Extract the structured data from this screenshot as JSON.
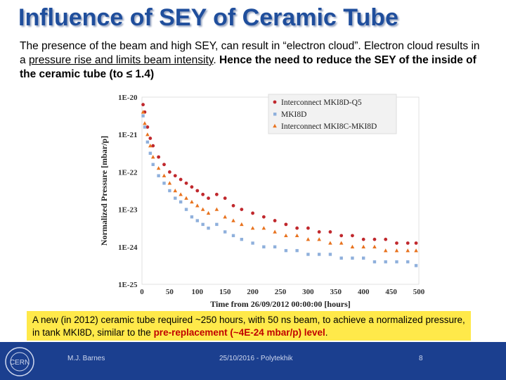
{
  "slide": {
    "title": "Influence of SEY of Ceramic Tube",
    "intro": {
      "p1": "The presence of the beam and high SEY, can result in “electron cloud”. Electron cloud results in a ",
      "p2": "pressure rise and limits beam intensity",
      "p3": ". ",
      "p4": "Hence the need to reduce the  SEY of the inside of the ceramic tube (to ≤ 1.4)"
    },
    "note": {
      "p1": "A new (in 2012) ceramic tube required ~250 hours, with 50 ns beam, to achieve a normalized pressure, in tank MKI8D, similar to the ",
      "p2": "pre-replacement (~4E-24 mbar/p) level",
      "p3": "."
    },
    "footer": {
      "author": "M.J. Barnes",
      "date": "25/10/2016 - Polytekhik",
      "page": "8",
      "logo_text": "CERN"
    }
  },
  "chart_data": {
    "type": "scatter",
    "title": "",
    "xlabel": "Time from 26/09/2012 00:00:00 [hours]",
    "ylabel": "Normalized Pressure [mbar/p]",
    "xlim": [
      0,
      500
    ],
    "ylim_log10": [
      -25,
      -20
    ],
    "x_ticks": [
      "0",
      "50",
      "100",
      "150",
      "200",
      "250",
      "300",
      "350",
      "400",
      "450",
      "500"
    ],
    "y_ticks": [
      "1E-20",
      "1E-21",
      "1E-22",
      "1E-23",
      "1E-24",
      "1E-25"
    ],
    "legend_position": "top-right",
    "series": [
      {
        "name": "Interconnect MKI8D-Q5",
        "color": "#c0282d",
        "marker": "circle",
        "x": [
          2,
          5,
          10,
          15,
          20,
          30,
          40,
          50,
          60,
          70,
          80,
          90,
          100,
          110,
          120,
          135,
          150,
          165,
          180,
          200,
          220,
          240,
          260,
          280,
          300,
          320,
          340,
          360,
          380,
          400,
          420,
          440,
          460,
          480,
          495
        ],
        "log10_y": [
          -20.2,
          -20.4,
          -20.8,
          -21.1,
          -21.3,
          -21.6,
          -21.8,
          -22.0,
          -22.1,
          -22.2,
          -22.3,
          -22.4,
          -22.5,
          -22.6,
          -22.7,
          -22.6,
          -22.7,
          -22.9,
          -23.0,
          -23.1,
          -23.2,
          -23.3,
          -23.4,
          -23.5,
          -23.5,
          -23.6,
          -23.6,
          -23.7,
          -23.7,
          -23.8,
          -23.8,
          -23.8,
          -23.9,
          -23.9,
          -23.9
        ]
      },
      {
        "name": "MKI8D",
        "color": "#8fb0dc",
        "marker": "square",
        "x": [
          2,
          5,
          10,
          15,
          20,
          30,
          40,
          50,
          60,
          70,
          80,
          90,
          100,
          110,
          120,
          135,
          150,
          165,
          180,
          200,
          220,
          240,
          260,
          280,
          300,
          320,
          340,
          360,
          380,
          400,
          420,
          440,
          460,
          480,
          495
        ],
        "log10_y": [
          -20.5,
          -20.8,
          -21.2,
          -21.5,
          -21.8,
          -22.1,
          -22.3,
          -22.5,
          -22.7,
          -22.8,
          -23.0,
          -23.2,
          -23.3,
          -23.4,
          -23.5,
          -23.4,
          -23.6,
          -23.7,
          -23.8,
          -23.9,
          -24.0,
          -24.0,
          -24.1,
          -24.1,
          -24.2,
          -24.2,
          -24.2,
          -24.3,
          -24.3,
          -24.3,
          -24.4,
          -24.4,
          -24.4,
          -24.4,
          -24.5
        ]
      },
      {
        "name": "Interconnect MKI8C-MKI8D",
        "color": "#e8731f",
        "marker": "triangle",
        "x": [
          2,
          5,
          10,
          15,
          20,
          30,
          40,
          50,
          60,
          70,
          80,
          90,
          100,
          110,
          120,
          135,
          150,
          165,
          180,
          200,
          220,
          240,
          260,
          280,
          300,
          320,
          340,
          360,
          380,
          400,
          420,
          440,
          460,
          480,
          495
        ],
        "log10_y": [
          -20.4,
          -20.7,
          -21.0,
          -21.3,
          -21.6,
          -21.9,
          -22.1,
          -22.3,
          -22.5,
          -22.6,
          -22.7,
          -22.8,
          -22.9,
          -23.0,
          -23.1,
          -23.0,
          -23.2,
          -23.3,
          -23.4,
          -23.5,
          -23.5,
          -23.6,
          -23.7,
          -23.7,
          -23.8,
          -23.8,
          -23.9,
          -23.9,
          -24.0,
          -24.0,
          -24.0,
          -24.1,
          -24.1,
          -24.1,
          -24.1
        ]
      }
    ]
  }
}
